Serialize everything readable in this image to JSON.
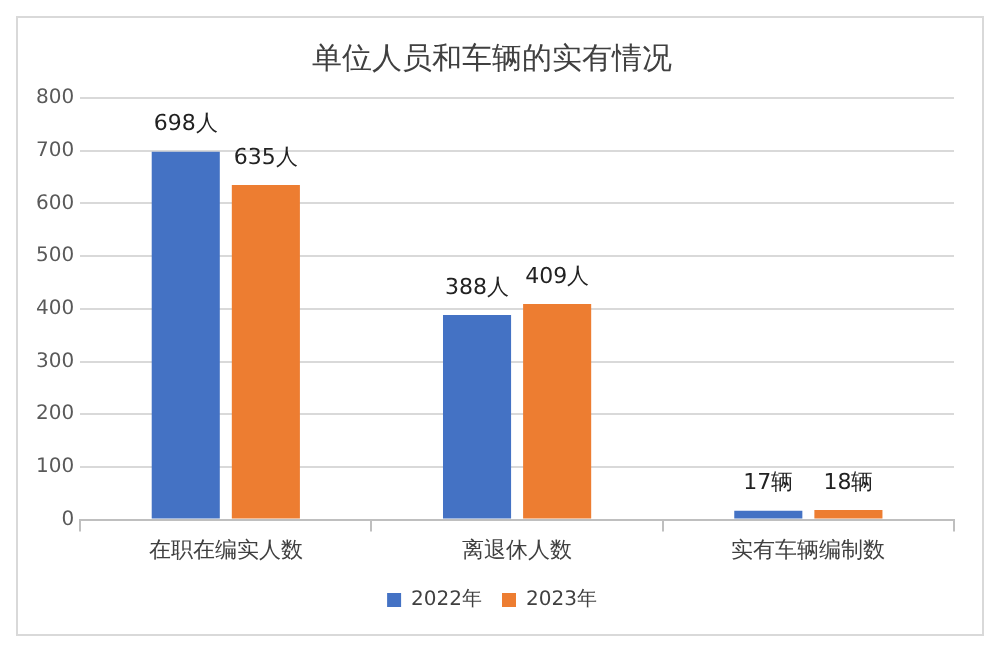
{
  "chart_data": {
    "type": "bar",
    "title": "单位人员和车辆的实有情况",
    "categories": [
      "在职在编实人数",
      "离退休人数",
      "实有车辆编制数"
    ],
    "series": [
      {
        "name": "2022年",
        "color": "#4472c4",
        "values": [
          698,
          388,
          17
        ],
        "value_labels": [
          "698人",
          "388人",
          "17辆"
        ]
      },
      {
        "name": "2023年",
        "color": "#ed7d31",
        "values": [
          635,
          409,
          18
        ],
        "value_labels": [
          "635人",
          "409人",
          "18辆"
        ]
      }
    ],
    "ylim": [
      0,
      800
    ],
    "yticks": [
      0,
      100,
      200,
      300,
      400,
      500,
      600,
      700,
      800
    ],
    "grid": "y",
    "legend": "bottom"
  }
}
